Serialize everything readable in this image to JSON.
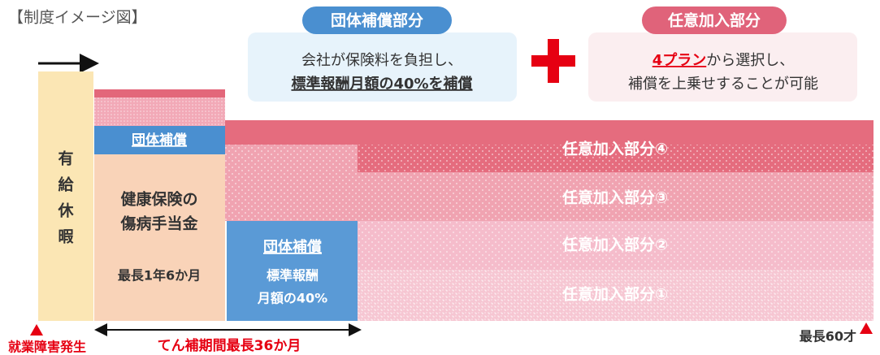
{
  "header": {
    "title": "【制度イメージ図】"
  },
  "callouts": [
    {
      "label": "団体補償部分",
      "lines": [
        "会社が保険料を負担し、",
        "標準報酬月額の40%を補償"
      ]
    },
    {
      "label": "任意加入部分",
      "highlight": "4プラン",
      "lines": [
        "から選択し、",
        "補償を上乗せすることが可能"
      ]
    }
  ],
  "diagram": {
    "paid_leave": [
      "有",
      "給",
      "休",
      "暇"
    ],
    "health_insurance": {
      "band": "団体補償",
      "lines": [
        "健康保険の",
        "傷病手当金"
      ],
      "duration": "最長1年6か月"
    },
    "group_coverage": {
      "label": "団体補償",
      "lines": [
        "標準報酬",
        "月額の40%"
      ]
    },
    "optional_layers": [
      "任意加入部分④",
      "任意加入部分③",
      "任意加入部分②",
      "任意加入部分①"
    ],
    "start": "就業障害発生",
    "period": "てん補期間最長36か月",
    "end": "最長60才"
  }
}
